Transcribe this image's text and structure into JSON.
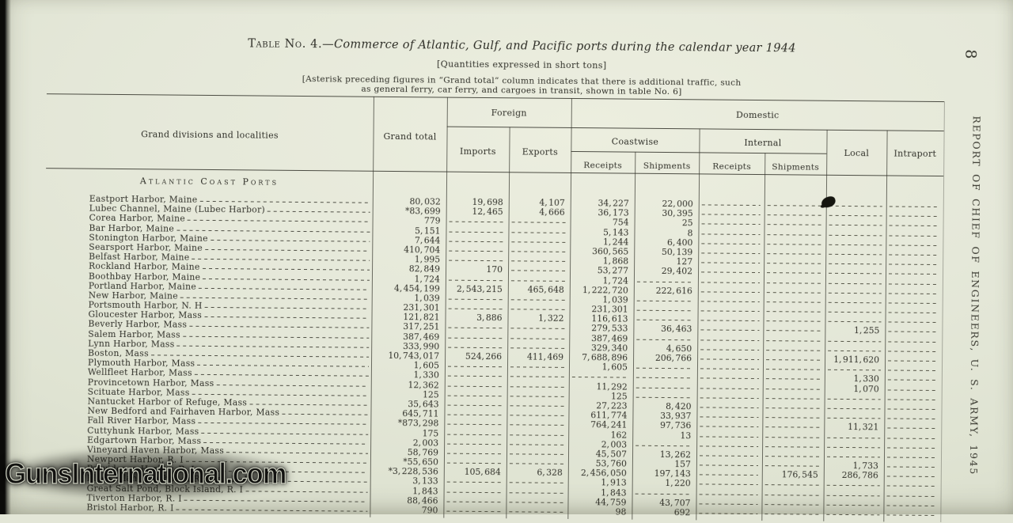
{
  "page": {
    "page_number": "8",
    "margin_text": "REPORT OF CHIEF OF ENGINEERS, U. S. ARMY, 1945",
    "watermark": "GunsInternational.com"
  },
  "table": {
    "title_prefix": "Table No. 4.",
    "title_italic": "—Commerce of Atlantic, Gulf, and Pacific ports during the calendar year 1944",
    "subtitle": "[Quantities expressed in short tons]",
    "note_line1": "[Asterisk preceding figures in “Grand total” column indicates that there is additional traffic, such",
    "note_line2": "as general ferry, car ferry, and cargoes in transit, shown in table No. 6]",
    "headers": {
      "localities": "Grand divisions and localities",
      "grand_total": "Grand total",
      "foreign": "Foreign",
      "domestic": "Domestic",
      "imports": "Imports",
      "exports": "Exports",
      "coastwise": "Coastwise",
      "internal": "Internal",
      "receipts": "Receipts",
      "shipments": "Shipments",
      "local": "Local",
      "intraport": "Intraport"
    },
    "section_header": "Atlantic Coast Ports",
    "row_format": [
      "locality",
      "grand_total",
      "imports",
      "exports",
      "coastwise_receipts",
      "coastwise_shipments",
      "internal_receipts",
      "internal_shipments",
      "local",
      "intraport"
    ],
    "rows": [
      [
        "Eastport Harbor, Maine",
        "80, 032",
        "19, 698",
        "4, 107",
        "34, 227",
        "22, 000",
        "",
        "",
        "",
        ""
      ],
      [
        "Lubec Channel, Maine (Lubec Harbor)",
        "*83, 699",
        "12, 465",
        "4, 666",
        "36, 173",
        "30, 395",
        "",
        "",
        "",
        ""
      ],
      [
        "Corea Harbor, Maine",
        "779",
        "",
        "",
        "754",
        "25",
        "",
        "",
        "",
        ""
      ],
      [
        "Bar Harbor, Maine",
        "5, 151",
        "",
        "",
        "5, 143",
        "8",
        "",
        "",
        "",
        ""
      ],
      [
        "Stonington Harbor, Maine",
        "7, 644",
        "",
        "",
        "1, 244",
        "6, 400",
        "",
        "",
        "",
        ""
      ],
      [
        "Searsport Harbor, Maine",
        "410, 704",
        "",
        "",
        "360, 565",
        "50, 139",
        "",
        "",
        "",
        ""
      ],
      [
        "Belfast Harbor, Maine",
        "1, 995",
        "",
        "",
        "1, 868",
        "127",
        "",
        "",
        "",
        ""
      ],
      [
        "Rockland Harbor, Maine",
        "82, 849",
        "170",
        "",
        "53, 277",
        "29, 402",
        "",
        "",
        "",
        ""
      ],
      [
        "Boothbay Harbor, Maine",
        "1, 724",
        "",
        "",
        "1, 724",
        "",
        "",
        "",
        "",
        ""
      ],
      [
        "Portland Harbor, Maine",
        "4, 454, 199",
        "2, 543, 215",
        "465, 648",
        "1, 222, 720",
        "222, 616",
        "",
        "",
        "",
        ""
      ],
      [
        "New Harbor, Maine",
        "1, 039",
        "",
        "",
        "1, 039",
        "",
        "",
        "",
        "",
        ""
      ],
      [
        "Portsmouth Harbor, N. H",
        "231, 301",
        "",
        "",
        "231, 301",
        "",
        "",
        "",
        "",
        ""
      ],
      [
        "Gloucester Harbor, Mass",
        "121, 821",
        "3, 886",
        "1, 322",
        "116, 613",
        "",
        "",
        "",
        "",
        ""
      ],
      [
        "Beverly Harbor, Mass",
        "317, 251",
        "",
        "",
        "279, 533",
        "36, 463",
        "",
        "",
        "1, 255",
        ""
      ],
      [
        "Salem Harbor, Mass",
        "387, 469",
        "",
        "",
        "387, 469",
        "",
        "",
        "",
        "",
        ""
      ],
      [
        "Lynn Harbor, Mass",
        "333, 990",
        "",
        "",
        "329, 340",
        "4, 650",
        "",
        "",
        "",
        ""
      ],
      [
        "Boston, Mass",
        "10, 743, 017",
        "524, 266",
        "411, 469",
        "7, 688, 896",
        "206, 766",
        "",
        "",
        "1, 911, 620",
        ""
      ],
      [
        "Plymouth Harbor, Mass",
        "1, 605",
        "",
        "",
        "1, 605",
        "",
        "",
        "",
        "",
        ""
      ],
      [
        "Wellfleet Harbor, Mass",
        "1, 330",
        "",
        "",
        "",
        "",
        "",
        "",
        "1, 330",
        ""
      ],
      [
        "Provincetown Harbor, Mass",
        "12, 362",
        "",
        "",
        "11, 292",
        "",
        "",
        "",
        "1, 070",
        ""
      ],
      [
        "Scituate Harbor, Mass",
        "125",
        "",
        "",
        "125",
        "",
        "",
        "",
        "",
        ""
      ],
      [
        "Nantucket Harbor of Refuge, Mass",
        "35, 643",
        "",
        "",
        "27, 223",
        "8, 420",
        "",
        "",
        "",
        ""
      ],
      [
        "New Bedford and Fairhaven Harbor, Mass",
        "645, 711",
        "",
        "",
        "611, 774",
        "33, 937",
        "",
        "",
        "",
        ""
      ],
      [
        "Fall River Harbor, Mass",
        "*873, 298",
        "",
        "",
        "764, 241",
        "97, 736",
        "",
        "",
        "11, 321",
        ""
      ],
      [
        "Cuttyhunk Harbor, Mass",
        "175",
        "",
        "",
        "162",
        "13",
        "",
        "",
        "",
        ""
      ],
      [
        "Edgartown Harbor, Mass",
        "2, 003",
        "",
        "",
        "2, 003",
        "",
        "",
        "",
        "",
        ""
      ],
      [
        "Vineyard Haven Harbor, Mass",
        "58, 769",
        "",
        "",
        "45, 507",
        "13, 262",
        "",
        "",
        "",
        ""
      ],
      [
        "Newport Harbor, R. I",
        "*55, 650",
        "",
        "",
        "53, 760",
        "157",
        "",
        "",
        "1, 733",
        ""
      ],
      [
        "Providence Harbor, R. I",
        "*3, 228, 536",
        "105, 684",
        "6, 328",
        "2, 456, 050",
        "197, 143",
        "",
        "176, 545",
        "286, 786",
        ""
      ],
      [
        "Block Island Harbor of Refuge, R. I",
        "3, 133",
        "",
        "",
        "1, 913",
        "1, 220",
        "",
        "",
        "",
        ""
      ],
      [
        "Great Salt Pond, Block Island, R. I",
        "1, 843",
        "",
        "",
        "1, 843",
        "",
        "",
        "",
        "",
        ""
      ],
      [
        "Tiverton Harbor, R. I",
        "88, 466",
        "",
        "",
        "44, 759",
        "43, 707",
        "",
        "",
        "",
        ""
      ],
      [
        "Bristol Harbor, R. I",
        "790",
        "",
        "",
        "98",
        "692",
        "",
        "",
        "",
        ""
      ]
    ]
  }
}
